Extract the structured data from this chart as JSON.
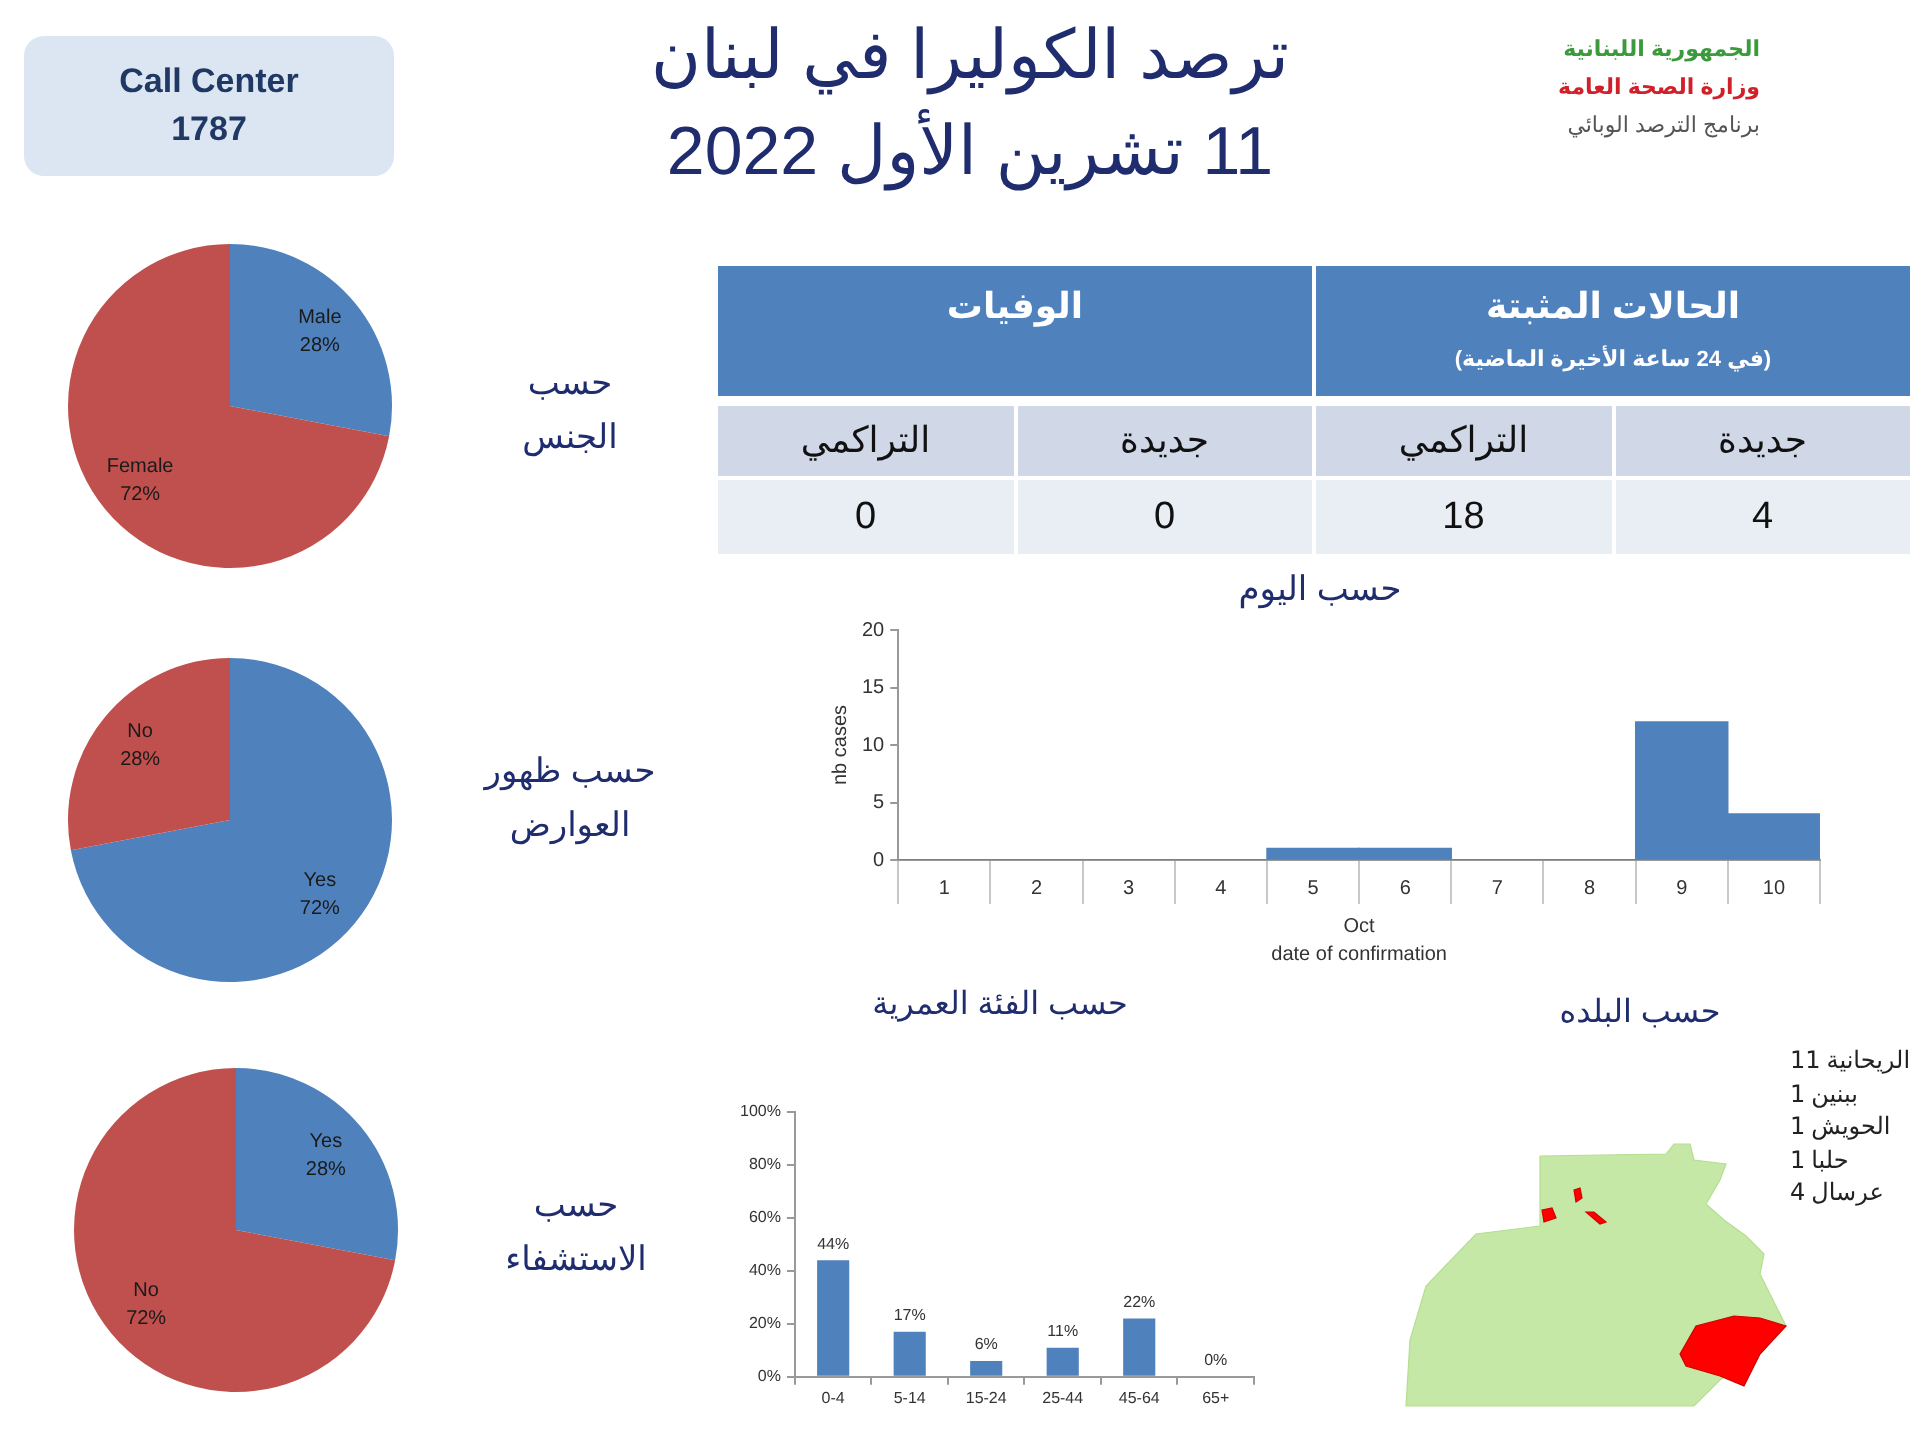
{
  "chart_data": [
    {
      "type": "other",
      "title": "ترصد الكوليرا في لبنان",
      "subtitle": "11 تشرين الأول 2022",
      "annotations": [
        "Call Center\n1787",
        "الجمهورية اللبنانية",
        "وزارة الصحة العامة",
        "برنامج الترصد الوبائي"
      ]
    },
    {
      "type": "other",
      "subtitle": "(في 24 ساعة الأخيرة الماضية)",
      "annotations": [
        "الوفيات",
        "الحالات المثبتة"
      ],
      "categories": [
        "التراكمي",
        "جديدة",
        "التراكمي",
        "جديدة"
      ],
      "values": [
        0,
        0,
        18,
        4
      ],
      "data_labels": true
    },
    {
      "type": "pie",
      "title": "حسب\nالجنس",
      "categories": [
        "Male",
        "Female"
      ],
      "values": [
        28,
        72
      ],
      "colors": [
        "#4f81bd",
        "#c0504d"
      ],
      "value_labels": [
        "28%",
        "72%"
      ]
    },
    {
      "type": "pie",
      "title": "حسب ظهور\nالعوارض",
      "categories": [
        "Yes",
        "No"
      ],
      "values": [
        72,
        28
      ],
      "colors": [
        "#4f81bd",
        "#c0504d"
      ],
      "value_labels": [
        "72%",
        "28%"
      ]
    },
    {
      "type": "pie",
      "title": "حسب\nالاستشفاء",
      "categories": [
        "Yes",
        "No"
      ],
      "values": [
        28,
        72
      ],
      "colors": [
        "#4f81bd",
        "#c0504d"
      ],
      "value_labels": [
        "28%",
        "72%"
      ]
    },
    {
      "type": "bar",
      "title": "حسب اليوم",
      "categories": [
        "1",
        "2",
        "3",
        "4",
        "5",
        "6",
        "7",
        "8",
        "9",
        "10"
      ],
      "values": [
        0,
        0,
        0,
        0,
        1,
        1,
        0,
        0,
        12,
        4
      ],
      "color": "#4f81bd",
      "ylim": [
        0,
        20
      ],
      "yticks": [
        0,
        5,
        10,
        15,
        20
      ],
      "xlabel": "date of confirmation",
      "ylabel": "nb cases",
      "annotations": [
        "Oct"
      ]
    },
    {
      "type": "bar",
      "title": "حسب الفئة العمرية",
      "categories": [
        "0-4",
        "5-14",
        "15-24",
        "25-44",
        "45-64",
        "65+"
      ],
      "values": [
        44,
        17,
        6,
        11,
        22,
        0
      ],
      "color": "#4f81bd",
      "ylim": [
        0,
        100
      ],
      "yticks": [
        {
          "value": 0,
          "label": "0%"
        },
        {
          "value": 20,
          "label": "20%"
        },
        {
          "value": 40,
          "label": "40%"
        },
        {
          "value": 60,
          "label": "60%"
        },
        {
          "value": 80,
          "label": "80%"
        },
        {
          "value": 100,
          "label": "100%"
        }
      ],
      "value_labels": [
        "44%",
        "17%",
        "6%",
        "11%",
        "22%",
        "0%"
      ]
    },
    {
      "type": "other",
      "title": "حسب البلده",
      "categories": [
        "الريحانية",
        "ببنين",
        "الحويش",
        "حلبا",
        "عرسال"
      ],
      "values": [
        11,
        1,
        1,
        1,
        4
      ],
      "data_labels": true
    }
  ]
}
